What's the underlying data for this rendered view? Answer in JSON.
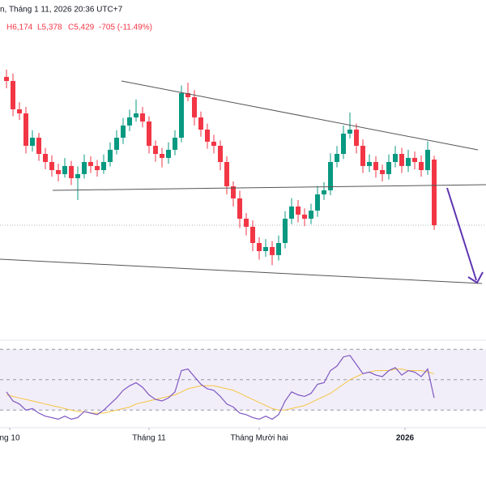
{
  "chart_data": {
    "type": "candlestick",
    "header": "n, Tháng 1 11, 2026 20:36 UTC+7",
    "legend": [
      "H6,174",
      "L5,378",
      "C5,429",
      "-705 (-11.49%)"
    ],
    "up_color": "#089981",
    "down_color": "#f23645",
    "xlim": [
      -1,
      74
    ],
    "ylim": [
      4194,
      7848
    ],
    "xticks": [
      {
        "value": 0.5,
        "label": "ng 10"
      },
      {
        "value": 22,
        "label": "Tháng 11"
      },
      {
        "value": 39,
        "label": "Tháng Mười hai"
      },
      {
        "value": 61.5,
        "label": "2026"
      }
    ],
    "ohlc": [
      [
        7022,
        7100,
        6900,
        6978
      ],
      [
        6978,
        7060,
        6600,
        6674
      ],
      [
        6674,
        6750,
        6560,
        6630
      ],
      [
        6630,
        6700,
        6200,
        6282
      ],
      [
        6282,
        6450,
        6220,
        6369
      ],
      [
        6369,
        6420,
        6120,
        6195
      ],
      [
        6195,
        6260,
        6030,
        6108
      ],
      [
        6108,
        6180,
        5950,
        6021
      ],
      [
        6021,
        6090,
        5900,
        5978
      ],
      [
        5978,
        6150,
        5940,
        6065
      ],
      [
        6065,
        6120,
        5860,
        5934
      ],
      [
        5934,
        6060,
        5700,
        5978
      ],
      [
        5978,
        6190,
        5930,
        6108
      ],
      [
        6108,
        6170,
        5990,
        6065
      ],
      [
        6065,
        6130,
        5950,
        6021
      ],
      [
        6021,
        6190,
        5980,
        6108
      ],
      [
        6108,
        6320,
        6060,
        6239
      ],
      [
        6239,
        6450,
        6190,
        6369
      ],
      [
        6369,
        6580,
        6300,
        6500
      ],
      [
        6500,
        6670,
        6440,
        6587
      ],
      [
        6587,
        6780,
        6540,
        6630
      ],
      [
        6630,
        6700,
        6480,
        6543
      ],
      [
        6543,
        6600,
        6200,
        6282
      ],
      [
        6282,
        6340,
        6110,
        6195
      ],
      [
        6195,
        6260,
        6050,
        6152
      ],
      [
        6152,
        6320,
        6090,
        6239
      ],
      [
        6239,
        6450,
        6180,
        6369
      ],
      [
        6369,
        6930,
        6320,
        6848
      ],
      [
        6848,
        6960,
        6760,
        6804
      ],
      [
        6804,
        6880,
        6500,
        6587
      ],
      [
        6587,
        6650,
        6380,
        6456
      ],
      [
        6456,
        6520,
        6250,
        6326
      ],
      [
        6326,
        6400,
        6200,
        6282
      ],
      [
        6282,
        6340,
        6020,
        6108
      ],
      [
        6108,
        6170,
        5760,
        5847
      ],
      [
        5847,
        5900,
        5630,
        5717
      ],
      [
        5717,
        5800,
        5400,
        5499
      ],
      [
        5499,
        5560,
        5320,
        5412
      ],
      [
        5412,
        5480,
        5150,
        5238
      ],
      [
        5238,
        5300,
        5060,
        5151
      ],
      [
        5151,
        5280,
        5090,
        5195
      ],
      [
        5195,
        5260,
        5000,
        5108
      ],
      [
        5108,
        5320,
        5050,
        5238
      ],
      [
        5238,
        5580,
        5180,
        5499
      ],
      [
        5499,
        5720,
        5440,
        5630
      ],
      [
        5630,
        5700,
        5460,
        5543
      ],
      [
        5543,
        5610,
        5420,
        5499
      ],
      [
        5499,
        5660,
        5440,
        5586
      ],
      [
        5586,
        5850,
        5520,
        5760
      ],
      [
        5760,
        5890,
        5700,
        5804
      ],
      [
        5804,
        6200,
        5750,
        6108
      ],
      [
        6108,
        6280,
        6050,
        6195
      ],
      [
        6195,
        6500,
        6140,
        6413
      ],
      [
        6413,
        6640,
        6360,
        6456
      ],
      [
        6456,
        6520,
        6200,
        6282
      ],
      [
        6282,
        6350,
        5990,
        6065
      ],
      [
        6065,
        6190,
        6000,
        6108
      ],
      [
        6108,
        6170,
        5940,
        6021
      ],
      [
        6021,
        6080,
        5900,
        5978
      ],
      [
        5978,
        6190,
        5920,
        6108
      ],
      [
        6108,
        6280,
        6050,
        6195
      ],
      [
        6195,
        6260,
        5990,
        6065
      ],
      [
        6065,
        6240,
        6000,
        6152
      ],
      [
        6152,
        6220,
        6030,
        6108
      ],
      [
        6108,
        6180,
        5950,
        6021
      ],
      [
        6021,
        6330,
        5970,
        6239
      ],
      [
        6134,
        6174,
        5378,
        5429
      ]
    ],
    "rsi_ylim": [
      20,
      76
    ],
    "rsi_bands": [
      30,
      50,
      70
    ],
    "rsi": {
      "color": "#7e57c2",
      "values": [
        42,
        36,
        34,
        30,
        31,
        28,
        26,
        25,
        24,
        26,
        24,
        25,
        29,
        28,
        27,
        30,
        34,
        38,
        43,
        46,
        48,
        45,
        40,
        37,
        36,
        38,
        42,
        56,
        57,
        52,
        47,
        44,
        43,
        39,
        34,
        32,
        28,
        27,
        25,
        24,
        26,
        24,
        27,
        36,
        42,
        40,
        39,
        41,
        47,
        48,
        56,
        59,
        65,
        66,
        60,
        54,
        55,
        53,
        52,
        56,
        58,
        53,
        56,
        55,
        52,
        57,
        38
      ]
    },
    "rsi_ma": {
      "color": "#f5c542",
      "values": [
        40,
        39,
        38,
        37,
        36,
        35,
        34,
        33,
        32,
        31,
        30,
        29,
        29,
        28,
        28,
        28,
        29,
        30,
        31,
        32,
        34,
        35,
        36,
        37,
        38,
        39,
        40,
        42,
        44,
        45,
        46,
        46,
        46,
        45,
        44,
        43,
        41,
        39,
        37,
        35,
        33,
        31,
        30,
        30,
        31,
        32,
        33,
        35,
        37,
        39,
        41,
        44,
        47,
        50,
        52,
        54,
        55,
        56,
        56,
        56,
        57,
        57,
        56,
        56,
        56,
        55,
        54
      ]
    }
  }
}
